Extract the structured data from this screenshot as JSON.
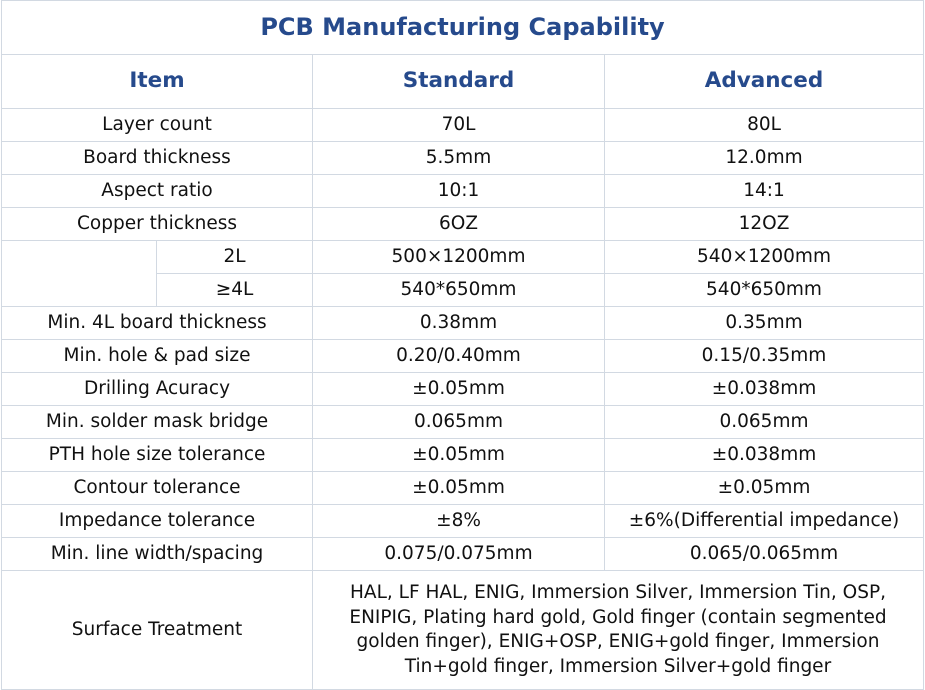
{
  "title": "PCB Manufacturing Capability",
  "headers": {
    "item": "Item",
    "standard": "Standard",
    "advanced": "Advanced"
  },
  "rows": {
    "layer_count": {
      "item": "Layer count",
      "standard": "70L",
      "advanced": "80L"
    },
    "board_thickness": {
      "item": "Board thickness",
      "standard": "5.5mm",
      "advanced": "12.0mm"
    },
    "aspect_ratio": {
      "item": "Aspect ratio",
      "standard": "10:1",
      "advanced": "14:1"
    },
    "copper_thickness": {
      "item": "Copper thickness",
      "standard": "6OZ",
      "advanced": "12OZ"
    },
    "size_2l": {
      "sub": "2L",
      "standard": "500×1200mm",
      "advanced": "540×1200mm"
    },
    "size_4l": {
      "sub": "≥4L",
      "standard": "540*650mm",
      "advanced": "540*650mm"
    },
    "min_4l_board": {
      "item": "Min. 4L board thickness",
      "standard": "0.38mm",
      "advanced": "0.35mm"
    },
    "min_hole_pad": {
      "item": "Min. hole & pad size",
      "standard": "0.20/0.40mm",
      "advanced": "0.15/0.35mm"
    },
    "drilling": {
      "item": "Drilling Acuracy",
      "standard": "±0.05mm",
      "advanced": "±0.038mm"
    },
    "solder_mask": {
      "item": "Min. solder mask bridge",
      "standard": "0.065mm",
      "advanced": "0.065mm"
    },
    "pth_tolerance": {
      "item": "PTH hole size tolerance",
      "standard": "±0.05mm",
      "advanced": "±0.038mm"
    },
    "contour": {
      "item": "Contour tolerance",
      "standard": "±0.05mm",
      "advanced": "±0.05mm"
    },
    "impedance": {
      "item": "Impedance tolerance",
      "standard": "±8%",
      "advanced": "±6%(Differential impedance)"
    },
    "line_width": {
      "item": "Min. line width/spacing",
      "standard": "0.075/0.075mm",
      "advanced": "0.065/0.065mm"
    }
  },
  "surface": {
    "item": "Surface Treatment",
    "lines": [
      "HAL, LF HAL, ENIG, Immersion Silver, Immersion Tin, OSP,",
      "ENIPIG, Plating hard gold, Gold finger (contain segmented",
      "golden finger), ENIG+OSP, ENIG+gold finger, Immersion",
      "Tin+gold finger, Immersion Silver+gold finger"
    ]
  }
}
